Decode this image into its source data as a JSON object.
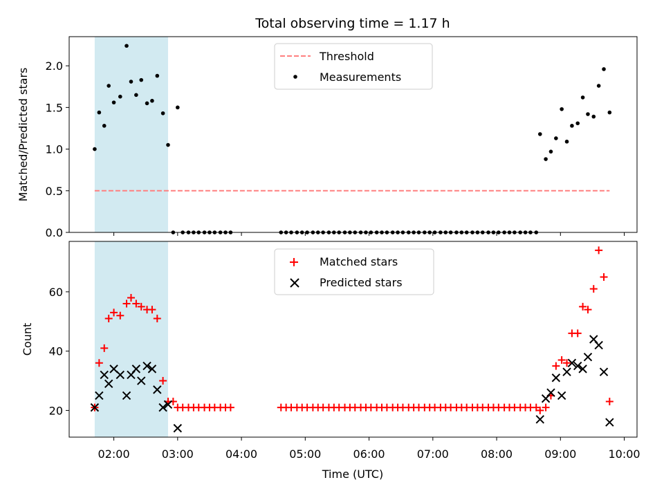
{
  "chart_data": [
    {
      "type": "scatter",
      "panel": "top",
      "title": "Total observing time = 1.17 h",
      "xlabel": "",
      "ylabel": "Matched/Predicted stars",
      "xlim": [
        1.3,
        10.2
      ],
      "ylim": [
        0,
        2.35
      ],
      "x_ticks": [
        "02:00",
        "03:00",
        "04:00",
        "05:00",
        "06:00",
        "07:00",
        "08:00",
        "09:00",
        "10:00"
      ],
      "x_tick_labels_visible": false,
      "y_ticks": [
        {
          "value": 0.0,
          "label": "0.0"
        },
        {
          "value": 0.5,
          "label": "0.5"
        },
        {
          "value": 1.0,
          "label": "1.0"
        },
        {
          "value": 1.5,
          "label": "1.5"
        },
        {
          "value": 2.0,
          "label": "2.0"
        }
      ],
      "grid": false,
      "legend_position": "top-center",
      "shaded_interval": {
        "x": [
          1.7,
          2.85
        ],
        "color": "#add8e6"
      },
      "series": [
        {
          "name": "Threshold",
          "kind": "dashed-line",
          "color": "#ff7f7f",
          "x": [
            1.7,
            9.77
          ],
          "y": [
            0.5,
            0.5
          ]
        },
        {
          "name": "Measurements",
          "kind": "dot",
          "color": "#000000",
          "points": [
            [
              1.7,
              1.0
            ],
            [
              1.77,
              1.44
            ],
            [
              1.85,
              1.28
            ],
            [
              1.92,
              1.76
            ],
            [
              2.0,
              1.56
            ],
            [
              2.1,
              1.63
            ],
            [
              2.2,
              2.24
            ],
            [
              2.27,
              1.81
            ],
            [
              2.35,
              1.65
            ],
            [
              2.43,
              1.83
            ],
            [
              2.52,
              1.55
            ],
            [
              2.6,
              1.58
            ],
            [
              2.68,
              1.88
            ],
            [
              2.77,
              1.43
            ],
            [
              2.85,
              1.05
            ],
            [
              2.93,
              0.0
            ],
            [
              3.0,
              1.5
            ],
            [
              3.08,
              0.0
            ],
            [
              3.17,
              0.0
            ],
            [
              3.25,
              0.0
            ],
            [
              3.33,
              0.0
            ],
            [
              3.42,
              0.0
            ],
            [
              3.5,
              0.0
            ],
            [
              3.58,
              0.0
            ],
            [
              3.67,
              0.0
            ],
            [
              3.75,
              0.0
            ],
            [
              3.83,
              0.0
            ],
            [
              4.62,
              0.0
            ],
            [
              4.7,
              0.0
            ],
            [
              4.78,
              0.0
            ],
            [
              4.87,
              0.0
            ],
            [
              4.95,
              0.0
            ],
            [
              5.03,
              0.0
            ],
            [
              5.12,
              0.0
            ],
            [
              5.2,
              0.0
            ],
            [
              5.28,
              0.0
            ],
            [
              5.37,
              0.0
            ],
            [
              5.45,
              0.0
            ],
            [
              5.53,
              0.0
            ],
            [
              5.62,
              0.0
            ],
            [
              5.7,
              0.0
            ],
            [
              5.78,
              0.0
            ],
            [
              5.87,
              0.0
            ],
            [
              5.95,
              0.0
            ],
            [
              6.03,
              0.0
            ],
            [
              6.12,
              0.0
            ],
            [
              6.2,
              0.0
            ],
            [
              6.28,
              0.0
            ],
            [
              6.37,
              0.0
            ],
            [
              6.45,
              0.0
            ],
            [
              6.53,
              0.0
            ],
            [
              6.62,
              0.0
            ],
            [
              6.7,
              0.0
            ],
            [
              6.78,
              0.0
            ],
            [
              6.87,
              0.0
            ],
            [
              6.95,
              0.0
            ],
            [
              7.03,
              0.0
            ],
            [
              7.12,
              0.0
            ],
            [
              7.2,
              0.0
            ],
            [
              7.28,
              0.0
            ],
            [
              7.37,
              0.0
            ],
            [
              7.45,
              0.0
            ],
            [
              7.53,
              0.0
            ],
            [
              7.62,
              0.0
            ],
            [
              7.7,
              0.0
            ],
            [
              7.78,
              0.0
            ],
            [
              7.87,
              0.0
            ],
            [
              7.95,
              0.0
            ],
            [
              8.03,
              0.0
            ],
            [
              8.12,
              0.0
            ],
            [
              8.2,
              0.0
            ],
            [
              8.28,
              0.0
            ],
            [
              8.37,
              0.0
            ],
            [
              8.45,
              0.0
            ],
            [
              8.53,
              0.0
            ],
            [
              8.62,
              0.0
            ],
            [
              8.68,
              1.18
            ],
            [
              8.77,
              0.88
            ],
            [
              8.85,
              0.97
            ],
            [
              8.93,
              1.13
            ],
            [
              9.02,
              1.48
            ],
            [
              9.1,
              1.09
            ],
            [
              9.18,
              1.28
            ],
            [
              9.27,
              1.31
            ],
            [
              9.35,
              1.62
            ],
            [
              9.43,
              1.42
            ],
            [
              9.52,
              1.39
            ],
            [
              9.6,
              1.76
            ],
            [
              9.68,
              1.96
            ],
            [
              9.77,
              1.44
            ]
          ]
        }
      ]
    },
    {
      "type": "scatter",
      "panel": "bottom",
      "title": "",
      "xlabel": "Time (UTC)",
      "ylabel": "Count",
      "xlim": [
        1.3,
        10.2
      ],
      "ylim": [
        11,
        77
      ],
      "x_ticks": [
        "02:00",
        "03:00",
        "04:00",
        "05:00",
        "06:00",
        "07:00",
        "08:00",
        "09:00",
        "10:00"
      ],
      "x_tick_labels_visible": true,
      "y_ticks": [
        {
          "value": 20,
          "label": "20"
        },
        {
          "value": 40,
          "label": "40"
        },
        {
          "value": 60,
          "label": "60"
        }
      ],
      "grid": false,
      "legend_position": "top-center",
      "shaded_interval": {
        "x": [
          1.7,
          2.85
        ],
        "color": "#add8e6"
      },
      "series": [
        {
          "name": "Matched stars",
          "kind": "plus",
          "color": "#ff0000",
          "points": [
            [
              1.7,
              21
            ],
            [
              1.77,
              36
            ],
            [
              1.85,
              41
            ],
            [
              1.92,
              51
            ],
            [
              2.0,
              53
            ],
            [
              2.1,
              52
            ],
            [
              2.2,
              56
            ],
            [
              2.27,
              58
            ],
            [
              2.35,
              56
            ],
            [
              2.43,
              55
            ],
            [
              2.52,
              54
            ],
            [
              2.6,
              54
            ],
            [
              2.68,
              51
            ],
            [
              2.77,
              30
            ],
            [
              2.85,
              23
            ],
            [
              2.93,
              23
            ],
            [
              3.0,
              21
            ],
            [
              3.08,
              21
            ],
            [
              3.17,
              21
            ],
            [
              3.25,
              21
            ],
            [
              3.33,
              21
            ],
            [
              3.42,
              21
            ],
            [
              3.5,
              21
            ],
            [
              3.58,
              21
            ],
            [
              3.67,
              21
            ],
            [
              3.75,
              21
            ],
            [
              3.83,
              21
            ],
            [
              4.62,
              21
            ],
            [
              4.7,
              21
            ],
            [
              4.78,
              21
            ],
            [
              4.87,
              21
            ],
            [
              4.95,
              21
            ],
            [
              5.03,
              21
            ],
            [
              5.12,
              21
            ],
            [
              5.2,
              21
            ],
            [
              5.28,
              21
            ],
            [
              5.37,
              21
            ],
            [
              5.45,
              21
            ],
            [
              5.53,
              21
            ],
            [
              5.62,
              21
            ],
            [
              5.7,
              21
            ],
            [
              5.78,
              21
            ],
            [
              5.87,
              21
            ],
            [
              5.95,
              21
            ],
            [
              6.03,
              21
            ],
            [
              6.12,
              21
            ],
            [
              6.2,
              21
            ],
            [
              6.28,
              21
            ],
            [
              6.37,
              21
            ],
            [
              6.45,
              21
            ],
            [
              6.53,
              21
            ],
            [
              6.62,
              21
            ],
            [
              6.7,
              21
            ],
            [
              6.78,
              21
            ],
            [
              6.87,
              21
            ],
            [
              6.95,
              21
            ],
            [
              7.03,
              21
            ],
            [
              7.12,
              21
            ],
            [
              7.2,
              21
            ],
            [
              7.28,
              21
            ],
            [
              7.37,
              21
            ],
            [
              7.45,
              21
            ],
            [
              7.53,
              21
            ],
            [
              7.62,
              21
            ],
            [
              7.7,
              21
            ],
            [
              7.78,
              21
            ],
            [
              7.87,
              21
            ],
            [
              7.95,
              21
            ],
            [
              8.03,
              21
            ],
            [
              8.12,
              21
            ],
            [
              8.2,
              21
            ],
            [
              8.28,
              21
            ],
            [
              8.37,
              21
            ],
            [
              8.45,
              21
            ],
            [
              8.53,
              21
            ],
            [
              8.62,
              21
            ],
            [
              8.68,
              20
            ],
            [
              8.77,
              21
            ],
            [
              8.85,
              25
            ],
            [
              8.93,
              35
            ],
            [
              9.02,
              37
            ],
            [
              9.1,
              36
            ],
            [
              9.18,
              46
            ],
            [
              9.27,
              46
            ],
            [
              9.35,
              55
            ],
            [
              9.43,
              54
            ],
            [
              9.52,
              61
            ],
            [
              9.6,
              74
            ],
            [
              9.68,
              65
            ],
            [
              9.77,
              23
            ]
          ]
        },
        {
          "name": "Predicted stars",
          "kind": "x",
          "color": "#000000",
          "points": [
            [
              1.7,
              21
            ],
            [
              1.77,
              25
            ],
            [
              1.85,
              32
            ],
            [
              1.92,
              29
            ],
            [
              2.0,
              34
            ],
            [
              2.1,
              32
            ],
            [
              2.2,
              25
            ],
            [
              2.27,
              32
            ],
            [
              2.35,
              34
            ],
            [
              2.43,
              30
            ],
            [
              2.52,
              35
            ],
            [
              2.6,
              34
            ],
            [
              2.68,
              27
            ],
            [
              2.77,
              21
            ],
            [
              2.85,
              22
            ],
            [
              3.0,
              14
            ],
            [
              8.68,
              17
            ],
            [
              8.77,
              24
            ],
            [
              8.85,
              26
            ],
            [
              8.93,
              31
            ],
            [
              9.02,
              25
            ],
            [
              9.1,
              33
            ],
            [
              9.18,
              36
            ],
            [
              9.27,
              35
            ],
            [
              9.35,
              34
            ],
            [
              9.43,
              38
            ],
            [
              9.52,
              44
            ],
            [
              9.6,
              42
            ],
            [
              9.68,
              33
            ],
            [
              9.77,
              16
            ]
          ]
        }
      ]
    }
  ]
}
